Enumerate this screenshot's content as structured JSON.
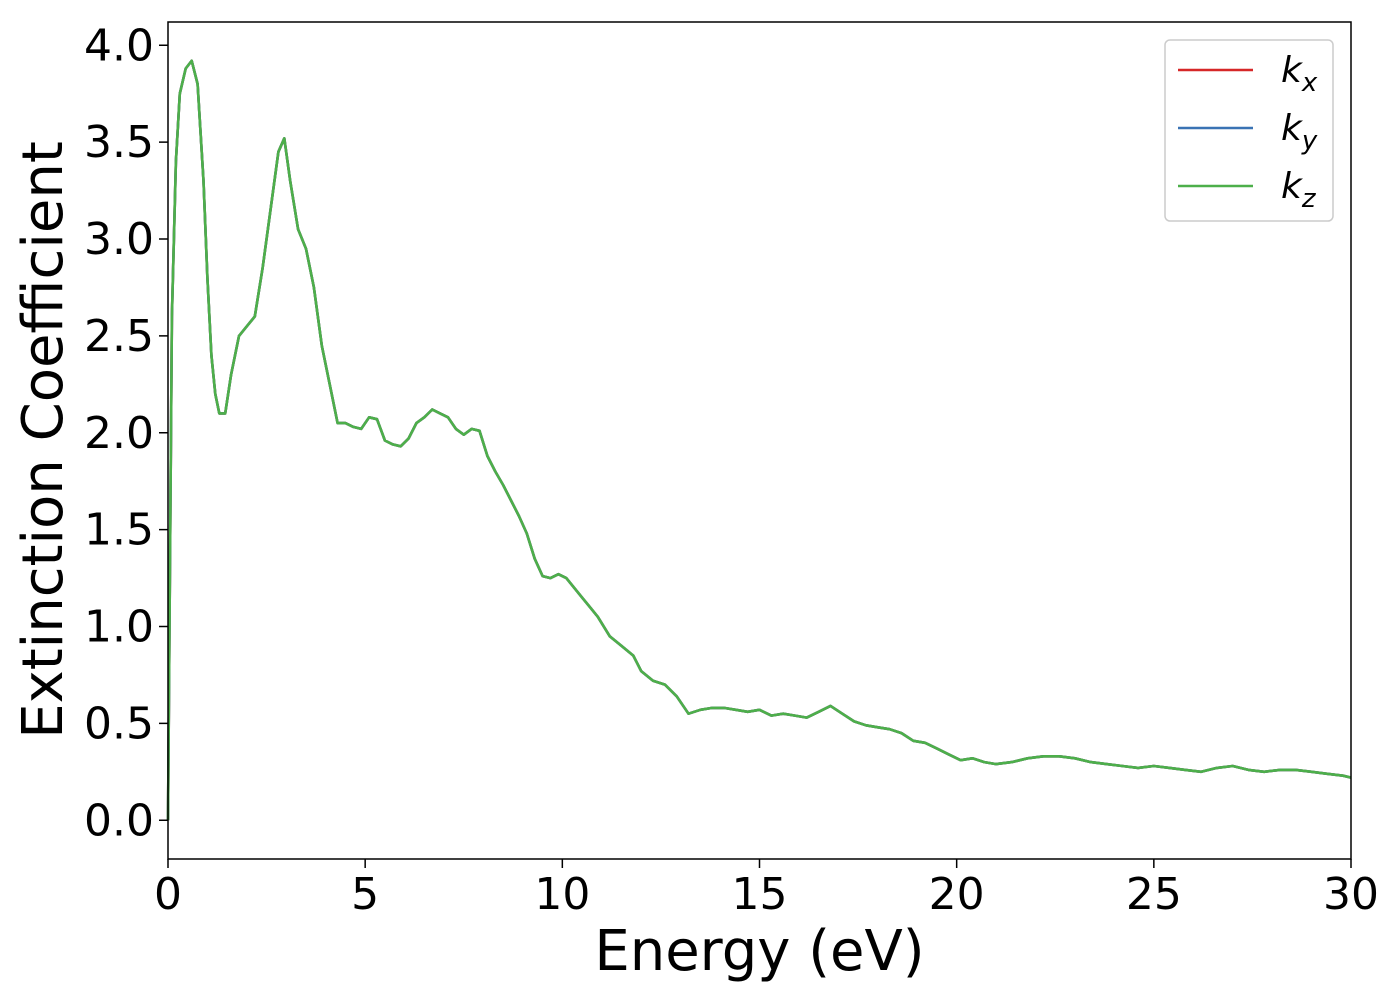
{
  "chart_data": {
    "type": "line",
    "title": "",
    "xlabel": "Energy (eV)",
    "ylabel": "Extinction Coefficient",
    "xlim": [
      0,
      30
    ],
    "ylim": [
      -0.2,
      4.12
    ],
    "xticks": [
      0,
      5,
      10,
      15,
      20,
      25,
      30
    ],
    "xtick_labels": [
      "0",
      "5",
      "10",
      "15",
      "20",
      "25",
      "30"
    ],
    "yticks": [
      0.0,
      0.5,
      1.0,
      1.5,
      2.0,
      2.5,
      3.0,
      3.5,
      4.0
    ],
    "ytick_labels": [
      "0.0",
      "0.5",
      "1.0",
      "1.5",
      "2.0",
      "2.5",
      "3.0",
      "3.5",
      "4.0"
    ],
    "grid": false,
    "legend_position": "top-right",
    "series": [
      {
        "name": "k_x",
        "label_base": "k",
        "label_sub": "x",
        "color": "#d62728",
        "x": [
          0,
          0.1,
          0.2,
          0.3,
          0.45,
          0.6,
          0.75,
          0.9,
          1.0,
          1.1,
          1.2,
          1.3,
          1.45,
          1.6,
          1.8,
          2.0,
          2.2,
          2.4,
          2.6,
          2.8,
          2.95,
          3.1,
          3.3,
          3.5,
          3.7,
          3.9,
          4.1,
          4.3,
          4.5,
          4.7,
          4.9,
          5.1,
          5.3,
          5.5,
          5.7,
          5.9,
          6.1,
          6.3,
          6.5,
          6.7,
          6.9,
          7.1,
          7.3,
          7.5,
          7.7,
          7.9,
          8.1,
          8.3,
          8.5,
          8.7,
          8.9,
          9.1,
          9.3,
          9.5,
          9.7,
          9.9,
          10.1,
          10.3,
          10.5,
          10.7,
          10.9,
          11.2,
          11.5,
          11.8,
          12.0,
          12.3,
          12.6,
          12.9,
          13.2,
          13.5,
          13.8,
          14.1,
          14.4,
          14.7,
          15.0,
          15.3,
          15.6,
          15.9,
          16.2,
          16.5,
          16.8,
          17.1,
          17.4,
          17.7,
          18.0,
          18.3,
          18.6,
          18.9,
          19.2,
          19.5,
          19.8,
          20.1,
          20.4,
          20.7,
          21.0,
          21.4,
          21.8,
          22.2,
          22.6,
          23.0,
          23.4,
          23.8,
          24.2,
          24.6,
          25.0,
          25.4,
          25.8,
          26.2,
          26.6,
          27.0,
          27.4,
          27.8,
          28.2,
          28.6,
          29.0,
          29.4,
          29.8,
          30.0
        ],
        "y": [
          0.0,
          2.6,
          3.4,
          3.75,
          3.88,
          3.92,
          3.8,
          3.3,
          2.8,
          2.4,
          2.2,
          2.1,
          2.1,
          2.3,
          2.5,
          2.55,
          2.6,
          2.85,
          3.15,
          3.45,
          3.52,
          3.3,
          3.05,
          2.95,
          2.75,
          2.45,
          2.25,
          2.05,
          2.05,
          2.03,
          2.02,
          2.08,
          2.07,
          1.96,
          1.94,
          1.93,
          1.97,
          2.05,
          2.08,
          2.12,
          2.1,
          2.08,
          2.02,
          1.99,
          2.02,
          2.01,
          1.88,
          1.8,
          1.73,
          1.65,
          1.57,
          1.48,
          1.35,
          1.26,
          1.25,
          1.27,
          1.25,
          1.2,
          1.15,
          1.1,
          1.05,
          0.95,
          0.9,
          0.85,
          0.77,
          0.72,
          0.7,
          0.64,
          0.55,
          0.57,
          0.58,
          0.58,
          0.57,
          0.56,
          0.57,
          0.54,
          0.55,
          0.54,
          0.53,
          0.56,
          0.59,
          0.55,
          0.51,
          0.49,
          0.48,
          0.47,
          0.45,
          0.41,
          0.4,
          0.37,
          0.34,
          0.31,
          0.32,
          0.3,
          0.29,
          0.3,
          0.32,
          0.33,
          0.33,
          0.32,
          0.3,
          0.29,
          0.28,
          0.27,
          0.28,
          0.27,
          0.26,
          0.25,
          0.27,
          0.28,
          0.26,
          0.25,
          0.26,
          0.26,
          0.25,
          0.24,
          0.23,
          0.22
        ]
      },
      {
        "name": "k_y",
        "label_base": "k",
        "label_sub": "y",
        "color": "#3a73b4",
        "x": [
          0,
          0.1,
          0.2,
          0.3,
          0.45,
          0.6,
          0.75,
          0.9,
          1.0,
          1.1,
          1.2,
          1.3,
          1.45,
          1.6,
          1.8,
          2.0,
          2.2,
          2.4,
          2.6,
          2.8,
          2.95,
          3.1,
          3.3,
          3.5,
          3.7,
          3.9,
          4.1,
          4.3,
          4.5,
          4.7,
          4.9,
          5.1,
          5.3,
          5.5,
          5.7,
          5.9,
          6.1,
          6.3,
          6.5,
          6.7,
          6.9,
          7.1,
          7.3,
          7.5,
          7.7,
          7.9,
          8.1,
          8.3,
          8.5,
          8.7,
          8.9,
          9.1,
          9.3,
          9.5,
          9.7,
          9.9,
          10.1,
          10.3,
          10.5,
          10.7,
          10.9,
          11.2,
          11.5,
          11.8,
          12.0,
          12.3,
          12.6,
          12.9,
          13.2,
          13.5,
          13.8,
          14.1,
          14.4,
          14.7,
          15.0,
          15.3,
          15.6,
          15.9,
          16.2,
          16.5,
          16.8,
          17.1,
          17.4,
          17.7,
          18.0,
          18.3,
          18.6,
          18.9,
          19.2,
          19.5,
          19.8,
          20.1,
          20.4,
          20.7,
          21.0,
          21.4,
          21.8,
          22.2,
          22.6,
          23.0,
          23.4,
          23.8,
          24.2,
          24.6,
          25.0,
          25.4,
          25.8,
          26.2,
          26.6,
          27.0,
          27.4,
          27.8,
          28.2,
          28.6,
          29.0,
          29.4,
          29.8,
          30.0
        ],
        "y": [
          0.0,
          2.6,
          3.4,
          3.75,
          3.88,
          3.92,
          3.8,
          3.3,
          2.8,
          2.4,
          2.2,
          2.1,
          2.1,
          2.3,
          2.5,
          2.55,
          2.6,
          2.85,
          3.15,
          3.45,
          3.52,
          3.3,
          3.05,
          2.95,
          2.75,
          2.45,
          2.25,
          2.05,
          2.05,
          2.03,
          2.02,
          2.08,
          2.07,
          1.96,
          1.94,
          1.93,
          1.97,
          2.05,
          2.08,
          2.12,
          2.1,
          2.08,
          2.02,
          1.99,
          2.02,
          2.01,
          1.88,
          1.8,
          1.73,
          1.65,
          1.57,
          1.48,
          1.35,
          1.26,
          1.25,
          1.27,
          1.25,
          1.2,
          1.15,
          1.1,
          1.05,
          0.95,
          0.9,
          0.85,
          0.77,
          0.72,
          0.7,
          0.64,
          0.55,
          0.57,
          0.58,
          0.58,
          0.57,
          0.56,
          0.57,
          0.54,
          0.55,
          0.54,
          0.53,
          0.56,
          0.59,
          0.55,
          0.51,
          0.49,
          0.48,
          0.47,
          0.45,
          0.41,
          0.4,
          0.37,
          0.34,
          0.31,
          0.32,
          0.3,
          0.29,
          0.3,
          0.32,
          0.33,
          0.33,
          0.32,
          0.3,
          0.29,
          0.28,
          0.27,
          0.28,
          0.27,
          0.26,
          0.25,
          0.27,
          0.28,
          0.26,
          0.25,
          0.26,
          0.26,
          0.25,
          0.24,
          0.23,
          0.22
        ]
      },
      {
        "name": "k_z",
        "label_base": "k",
        "label_sub": "z",
        "color": "#4daf4a",
        "x": [
          0,
          0.1,
          0.2,
          0.3,
          0.45,
          0.6,
          0.75,
          0.9,
          1.0,
          1.1,
          1.2,
          1.3,
          1.45,
          1.6,
          1.8,
          2.0,
          2.2,
          2.4,
          2.6,
          2.8,
          2.95,
          3.1,
          3.3,
          3.5,
          3.7,
          3.9,
          4.1,
          4.3,
          4.5,
          4.7,
          4.9,
          5.1,
          5.3,
          5.5,
          5.7,
          5.9,
          6.1,
          6.3,
          6.5,
          6.7,
          6.9,
          7.1,
          7.3,
          7.5,
          7.7,
          7.9,
          8.1,
          8.3,
          8.5,
          8.7,
          8.9,
          9.1,
          9.3,
          9.5,
          9.7,
          9.9,
          10.1,
          10.3,
          10.5,
          10.7,
          10.9,
          11.2,
          11.5,
          11.8,
          12.0,
          12.3,
          12.6,
          12.9,
          13.2,
          13.5,
          13.8,
          14.1,
          14.4,
          14.7,
          15.0,
          15.3,
          15.6,
          15.9,
          16.2,
          16.5,
          16.8,
          17.1,
          17.4,
          17.7,
          18.0,
          18.3,
          18.6,
          18.9,
          19.2,
          19.5,
          19.8,
          20.1,
          20.4,
          20.7,
          21.0,
          21.4,
          21.8,
          22.2,
          22.6,
          23.0,
          23.4,
          23.8,
          24.2,
          24.6,
          25.0,
          25.4,
          25.8,
          26.2,
          26.6,
          27.0,
          27.4,
          27.8,
          28.2,
          28.6,
          29.0,
          29.4,
          29.8,
          30.0
        ],
        "y": [
          0.0,
          2.6,
          3.4,
          3.75,
          3.88,
          3.92,
          3.8,
          3.3,
          2.8,
          2.4,
          2.2,
          2.1,
          2.1,
          2.3,
          2.5,
          2.55,
          2.6,
          2.85,
          3.15,
          3.45,
          3.52,
          3.3,
          3.05,
          2.95,
          2.75,
          2.45,
          2.25,
          2.05,
          2.05,
          2.03,
          2.02,
          2.08,
          2.07,
          1.96,
          1.94,
          1.93,
          1.97,
          2.05,
          2.08,
          2.12,
          2.1,
          2.08,
          2.02,
          1.99,
          2.02,
          2.01,
          1.88,
          1.8,
          1.73,
          1.65,
          1.57,
          1.48,
          1.35,
          1.26,
          1.25,
          1.27,
          1.25,
          1.2,
          1.15,
          1.1,
          1.05,
          0.95,
          0.9,
          0.85,
          0.77,
          0.72,
          0.7,
          0.64,
          0.55,
          0.57,
          0.58,
          0.58,
          0.57,
          0.56,
          0.57,
          0.54,
          0.55,
          0.54,
          0.53,
          0.56,
          0.59,
          0.55,
          0.51,
          0.49,
          0.48,
          0.47,
          0.45,
          0.41,
          0.4,
          0.37,
          0.34,
          0.31,
          0.32,
          0.3,
          0.29,
          0.3,
          0.32,
          0.33,
          0.33,
          0.32,
          0.3,
          0.29,
          0.28,
          0.27,
          0.28,
          0.27,
          0.26,
          0.25,
          0.27,
          0.28,
          0.26,
          0.25,
          0.26,
          0.26,
          0.25,
          0.24,
          0.23,
          0.22
        ]
      }
    ]
  }
}
